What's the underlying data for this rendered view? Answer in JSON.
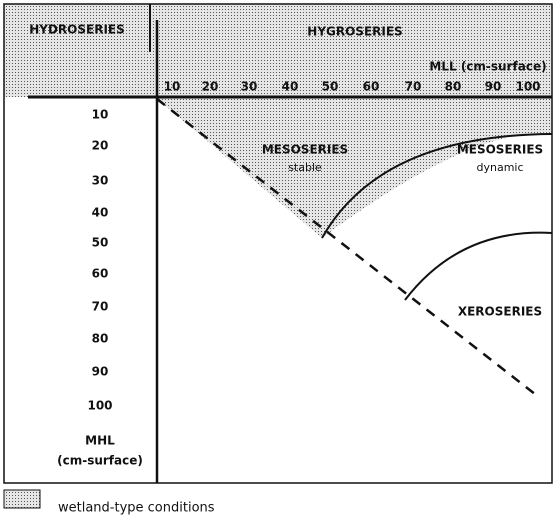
{
  "header": {
    "left": "HYDROSERIES",
    "right": "HYGROSERIES"
  },
  "x_axis": {
    "label": "MLL (cm-surface)",
    "ticks": [
      10,
      20,
      30,
      40,
      50,
      60,
      70,
      80,
      90,
      100
    ]
  },
  "y_axis": {
    "ticks": [
      10,
      20,
      30,
      40,
      50,
      60,
      70,
      80,
      90,
      100
    ],
    "label": [
      "MHL",
      "(cm-surface)"
    ]
  },
  "regions": [
    {
      "name": "MESOSERIES",
      "sub": "stable"
    },
    {
      "name": "MESOSERIES",
      "sub": "dynamic"
    },
    {
      "name": "XEROSERIES"
    }
  ],
  "legend": {
    "label": "wetland-type conditions"
  }
}
